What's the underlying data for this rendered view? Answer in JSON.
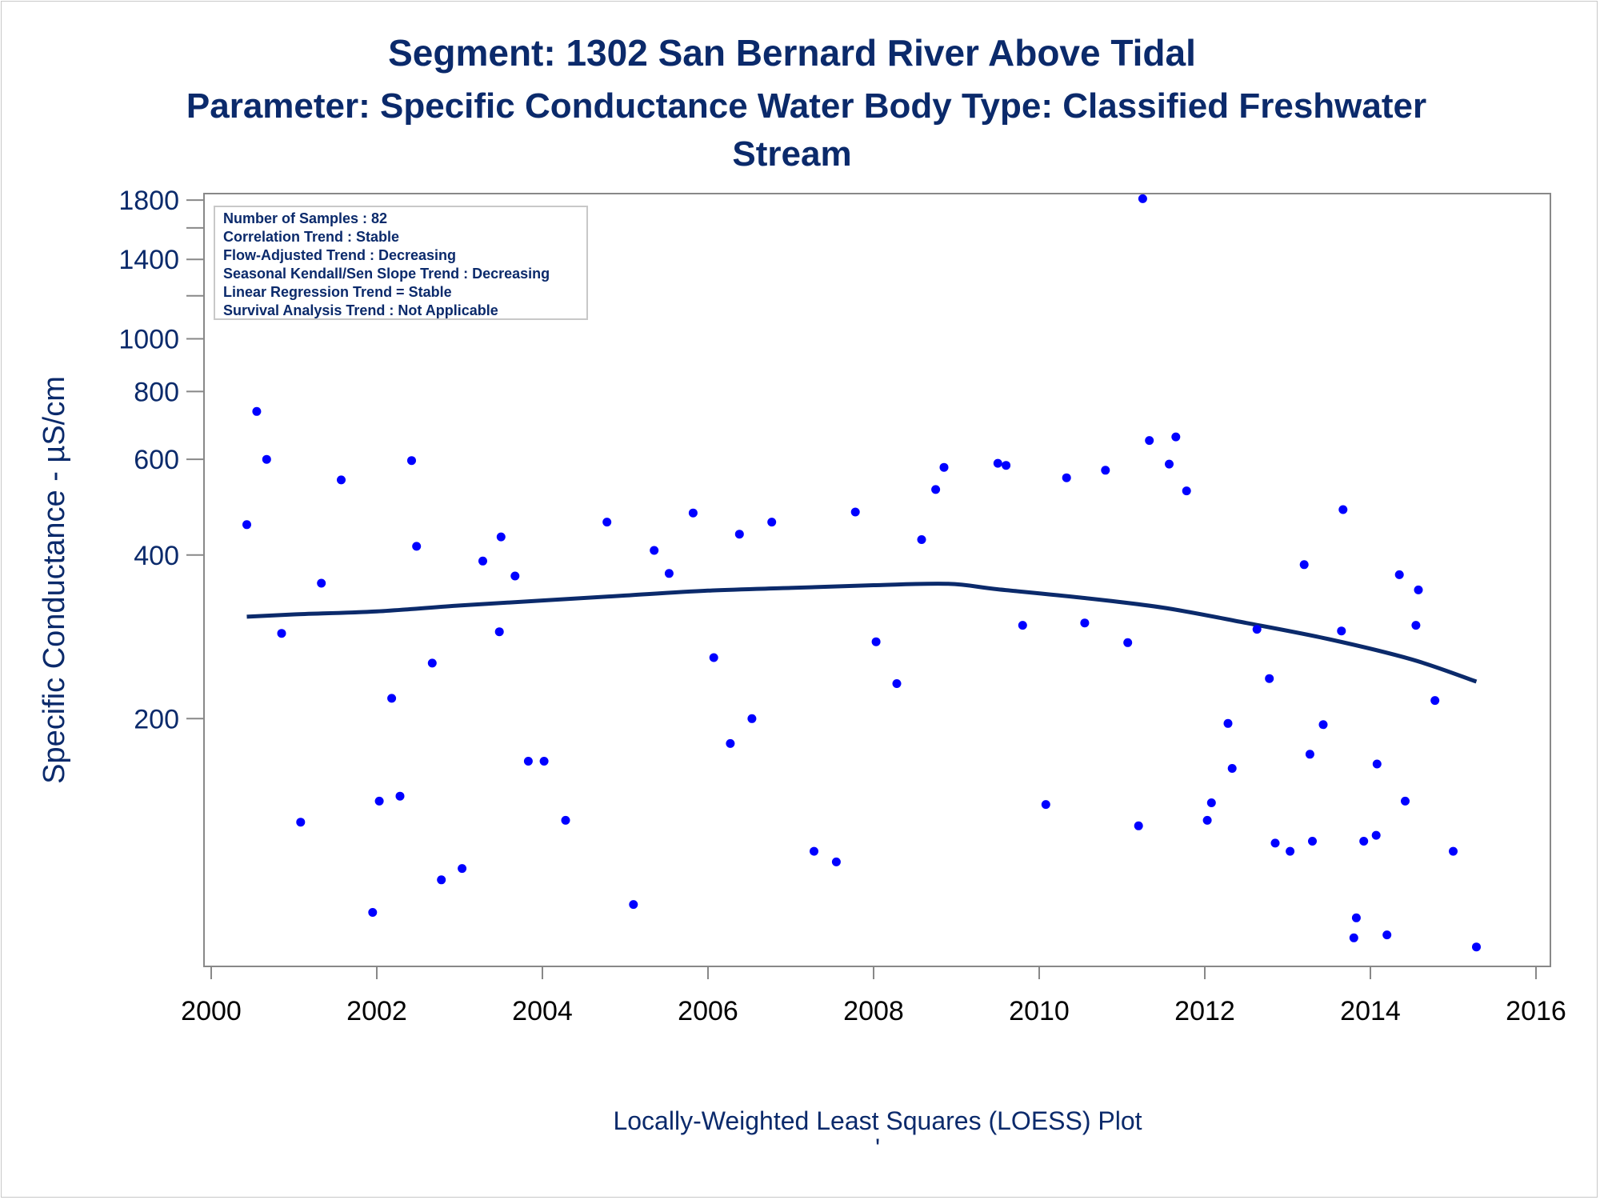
{
  "chart_data": {
    "type": "scatter",
    "title": "Segment: 1302  San Bernard River Above Tidal",
    "subtitle_lines": [
      "Parameter: Specific Conductance   Water Body Type: Classified Freshwater",
      "Stream"
    ],
    "xlabel": "",
    "ylabel": "Specific Conductance -  µS/cm",
    "footnote": "Locally-Weighted Least Squares (LOESS) Plot",
    "footnote_mark": "'",
    "x_ticks": [
      "2000",
      "2002",
      "2004",
      "2006",
      "2008",
      "2010",
      "2012",
      "2014",
      "2016"
    ],
    "y_ticks": [
      "200",
      "400",
      "600",
      "800",
      "1000",
      "1400",
      "1800"
    ],
    "y_scale": "log",
    "xlim": [
      2000,
      2016
    ],
    "ylim": [
      70,
      1850
    ],
    "grid": false,
    "stats_box": [
      "Number of Samples : 82",
      "Correlation Trend : Stable",
      "Flow-Adjusted Trend : Decreasing",
      "Seasonal Kendall/Sen Slope Trend : Decreasing",
      "Linear Regression Trend = Stable",
      "Survival Analysis Trend : Not Applicable"
    ],
    "colors": {
      "points": "#0000ff",
      "loess": "#0b2a6b",
      "text": "#0b2a6b",
      "axis": "#888888"
    },
    "points": [
      [
        2000.43,
        455
      ],
      [
        2000.55,
        735
      ],
      [
        2000.67,
        600
      ],
      [
        2000.85,
        287
      ],
      [
        2001.08,
        129
      ],
      [
        2001.33,
        355
      ],
      [
        2001.57,
        550
      ],
      [
        2001.95,
        88
      ],
      [
        2002.03,
        141
      ],
      [
        2002.18,
        218
      ],
      [
        2002.28,
        144
      ],
      [
        2002.42,
        597
      ],
      [
        2002.48,
        415
      ],
      [
        2002.67,
        253
      ],
      [
        2002.78,
        101
      ],
      [
        2003.03,
        106
      ],
      [
        2003.28,
        390
      ],
      [
        2003.48,
        289
      ],
      [
        2003.5,
        432
      ],
      [
        2003.67,
        366
      ],
      [
        2003.83,
        167
      ],
      [
        2004.02,
        167
      ],
      [
        2004.28,
        130
      ],
      [
        2004.78,
        460
      ],
      [
        2005.1,
        91
      ],
      [
        2005.35,
        408
      ],
      [
        2005.53,
        370
      ],
      [
        2005.82,
        478
      ],
      [
        2006.07,
        259
      ],
      [
        2006.27,
        180
      ],
      [
        2006.38,
        437
      ],
      [
        2006.53,
        200
      ],
      [
        2006.77,
        460
      ],
      [
        2007.28,
        114
      ],
      [
        2007.55,
        109
      ],
      [
        2007.78,
        480
      ],
      [
        2008.03,
        277
      ],
      [
        2008.28,
        232
      ],
      [
        2008.58,
        427
      ],
      [
        2008.75,
        528
      ],
      [
        2008.85,
        580
      ],
      [
        2009.5,
        590
      ],
      [
        2009.6,
        585
      ],
      [
        2009.8,
        297
      ],
      [
        2010.08,
        139
      ],
      [
        2010.33,
        555
      ],
      [
        2010.55,
        300
      ],
      [
        2010.8,
        573
      ],
      [
        2011.07,
        276
      ],
      [
        2011.2,
        127
      ],
      [
        2011.25,
        1810
      ],
      [
        2011.33,
        650
      ],
      [
        2011.57,
        588
      ],
      [
        2011.65,
        660
      ],
      [
        2011.78,
        525
      ],
      [
        2012.03,
        130
      ],
      [
        2012.08,
        140
      ],
      [
        2012.28,
        196
      ],
      [
        2012.33,
        162
      ],
      [
        2012.63,
        292
      ],
      [
        2012.78,
        237
      ],
      [
        2012.85,
        118
      ],
      [
        2013.03,
        114
      ],
      [
        2013.2,
        384
      ],
      [
        2013.27,
        172
      ],
      [
        2013.3,
        119
      ],
      [
        2013.43,
        195
      ],
      [
        2013.65,
        290
      ],
      [
        2013.67,
        485
      ],
      [
        2013.8,
        79
      ],
      [
        2013.83,
        86
      ],
      [
        2013.92,
        119
      ],
      [
        2014.07,
        122
      ],
      [
        2014.08,
        165
      ],
      [
        2014.2,
        80
      ],
      [
        2014.35,
        368
      ],
      [
        2014.42,
        141
      ],
      [
        2014.55,
        297
      ],
      [
        2014.58,
        345
      ],
      [
        2014.78,
        216
      ],
      [
        2015.0,
        114
      ],
      [
        2015.28,
        76
      ]
    ],
    "loess": [
      [
        2000.43,
        308
      ],
      [
        2001.0,
        311
      ],
      [
        2002.0,
        315
      ],
      [
        2003.0,
        323
      ],
      [
        2004.0,
        330
      ],
      [
        2005.0,
        337
      ],
      [
        2006.0,
        344
      ],
      [
        2007.0,
        348
      ],
      [
        2008.0,
        352
      ],
      [
        2008.9,
        354
      ],
      [
        2009.5,
        346
      ],
      [
        2010.5,
        334
      ],
      [
        2011.5,
        320
      ],
      [
        2012.5,
        300
      ],
      [
        2013.5,
        280
      ],
      [
        2014.5,
        257
      ],
      [
        2015.28,
        234
      ]
    ]
  }
}
